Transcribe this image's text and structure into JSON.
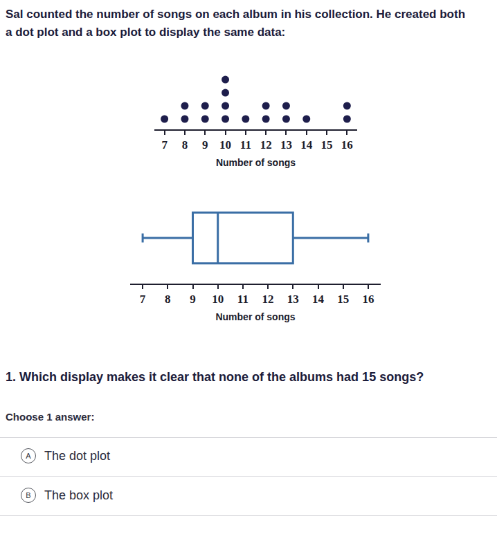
{
  "intro": "Sal counted the number of songs on each album in his collection. He created both a dot plot and a box plot to display the same data:",
  "chart_data": [
    {
      "type": "dot",
      "x_label": "Number of songs",
      "x": [
        7,
        8,
        9,
        10,
        11,
        12,
        13,
        14,
        15,
        16
      ],
      "values": [
        1,
        2,
        2,
        4,
        1,
        2,
        2,
        1,
        0,
        2
      ],
      "color": "#1e1e4c",
      "xlim": [
        6.5,
        16.5
      ],
      "xticks": [
        7,
        8,
        9,
        10,
        11,
        12,
        13,
        14,
        15,
        16
      ],
      "grid": false,
      "tick_labels": "x"
    },
    {
      "type": "box",
      "x_label": "Number of songs",
      "min": 7,
      "q1": 9,
      "median": 10,
      "q3": 13,
      "max": 16,
      "color": "#3a6ea5",
      "orientation": "horizontal",
      "xlim": [
        6.5,
        16.5
      ],
      "xticks": [
        7,
        8,
        9,
        10,
        11,
        12,
        13,
        14,
        15,
        16
      ],
      "grid": false,
      "tick_labels": "x"
    }
  ],
  "question": "1. Which display makes it clear that none of the albums had 15 songs?",
  "prompt": "Choose 1 answer:",
  "choices": [
    {
      "letter": "A",
      "text": "The dot plot"
    },
    {
      "letter": "B",
      "text": "The box plot"
    }
  ]
}
